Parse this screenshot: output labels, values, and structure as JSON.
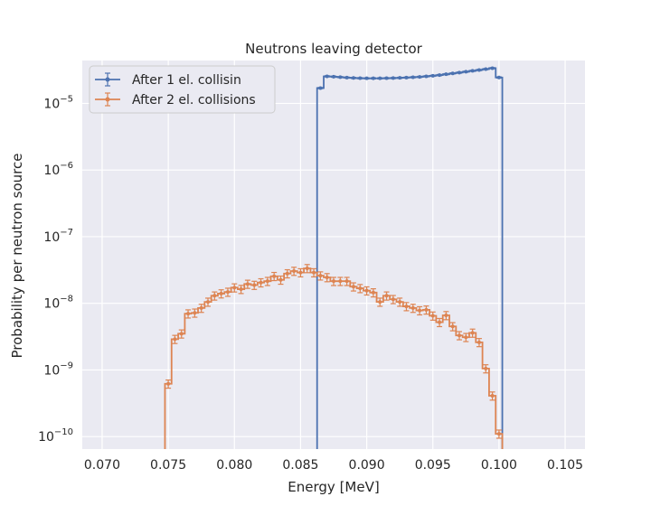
{
  "chart_data": {
    "type": "line",
    "style": "step-histogram-with-errorbars",
    "title": "Neutrons leaving detector",
    "xlabel": "Energy [MeV]",
    "ylabel": "Probability per neutron source",
    "xlim": [
      0.0685,
      0.1065
    ],
    "ylim": [
      6.5e-11,
      4.4e-05
    ],
    "yscale": "log",
    "grid": true,
    "legend_position": "top-left",
    "x_ticks": [
      "0.070",
      "0.075",
      "0.080",
      "0.085",
      "0.090",
      "0.095",
      "0.100",
      "0.105"
    ],
    "y_ticks": [
      {
        "base": "10",
        "exp": "−10"
      },
      {
        "base": "10",
        "exp": "−9"
      },
      {
        "base": "10",
        "exp": "−8"
      },
      {
        "base": "10",
        "exp": "−7"
      },
      {
        "base": "10",
        "exp": "−6"
      },
      {
        "base": "10",
        "exp": "−5"
      }
    ],
    "colors": {
      "background": "#eaeaf2",
      "grid": "#ffffff",
      "series1": "#4c72b0",
      "series2": "#dd8452"
    },
    "series": [
      {
        "name": "After 1 el. collisin",
        "color": "#4c72b0",
        "x": [
          0.0865,
          0.087,
          0.0875,
          0.088,
          0.0885,
          0.089,
          0.0895,
          0.09,
          0.0905,
          0.091,
          0.0915,
          0.092,
          0.0925,
          0.093,
          0.0935,
          0.094,
          0.0945,
          0.095,
          0.0955,
          0.096,
          0.0965,
          0.097,
          0.0975,
          0.098,
          0.0985,
          0.099,
          0.0995,
          0.1
        ],
        "y": [
          1.7e-05,
          2.55e-05,
          2.52e-05,
          2.48e-05,
          2.44e-05,
          2.41e-05,
          2.39e-05,
          2.38e-05,
          2.38e-05,
          2.38e-05,
          2.39e-05,
          2.4e-05,
          2.42e-05,
          2.44e-05,
          2.47e-05,
          2.5e-05,
          2.55e-05,
          2.6e-05,
          2.66e-05,
          2.74e-05,
          2.82e-05,
          2.9e-05,
          2.99e-05,
          3.08e-05,
          3.17e-05,
          3.27e-05,
          3.38e-05,
          2.45e-05
        ]
      },
      {
        "name": "After 2 el. collisions",
        "color": "#dd8452",
        "x": [
          0.075,
          0.0755,
          0.076,
          0.0765,
          0.077,
          0.0775,
          0.078,
          0.0785,
          0.079,
          0.0795,
          0.08,
          0.0805,
          0.081,
          0.0815,
          0.082,
          0.0825,
          0.083,
          0.0835,
          0.084,
          0.0845,
          0.085,
          0.0855,
          0.086,
          0.0865,
          0.087,
          0.0875,
          0.088,
          0.0885,
          0.089,
          0.0895,
          0.09,
          0.0905,
          0.091,
          0.0915,
          0.092,
          0.0925,
          0.093,
          0.0935,
          0.094,
          0.0945,
          0.095,
          0.0955,
          0.096,
          0.0965,
          0.097,
          0.0975,
          0.098,
          0.0985,
          0.099,
          0.0995,
          0.1
        ],
        "y": [
          6.2e-10,
          2.9e-09,
          3.5e-09,
          7e-09,
          7.2e-09,
          8.5e-09,
          1.05e-08,
          1.3e-08,
          1.4e-08,
          1.48e-08,
          1.72e-08,
          1.63e-08,
          1.95e-08,
          1.88e-08,
          2.05e-08,
          2.15e-08,
          2.55e-08,
          2.25e-08,
          2.8e-08,
          3.05e-08,
          2.9e-08,
          3.35e-08,
          2.9e-08,
          2.6e-08,
          2.45e-08,
          2.15e-08,
          2.15e-08,
          2.15e-08,
          1.78e-08,
          1.68e-08,
          1.55e-08,
          1.45e-08,
          1.05e-08,
          1.3e-08,
          1.15e-08,
          1.05e-08,
          9e-09,
          8.5e-09,
          7.8e-09,
          8e-09,
          6.5e-09,
          5.2e-09,
          6.6e-09,
          4.5e-09,
          3.3e-09,
          3.1e-09,
          3.6e-09,
          2.6e-09,
          1.05e-09,
          4.1e-10,
          1.1e-10
        ]
      }
    ]
  }
}
